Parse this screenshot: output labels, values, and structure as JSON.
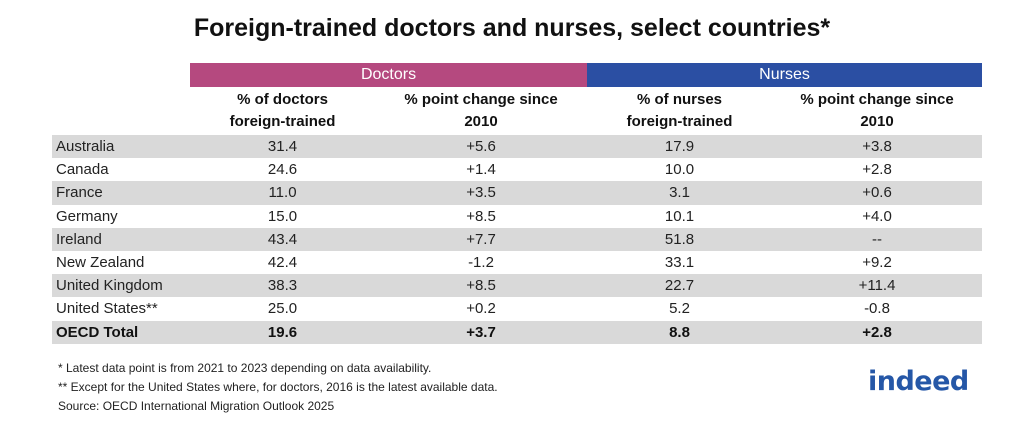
{
  "title": "Foreign-trained doctors and nurses, select countries*",
  "colors": {
    "doctors": "#b5497f",
    "nurses": "#2b4fa3",
    "shade": "#d9d9d9",
    "logo": "#2557a7"
  },
  "groups": {
    "doctors": "Doctors",
    "nurses": "Nurses"
  },
  "headers": {
    "col1": [
      "% of doctors",
      "foreign-trained"
    ],
    "col2": [
      "% point change since",
      "2010"
    ],
    "col3": [
      "% of nurses",
      "foreign-trained"
    ],
    "col4": [
      "% point change since",
      "2010"
    ]
  },
  "chart_data": {
    "type": "table",
    "title": "Foreign-trained doctors and nurses, select countries*",
    "columns": [
      "",
      "% of doctors foreign-trained",
      "% point change since 2010",
      "% of nurses foreign-trained",
      "% point change since 2010"
    ],
    "rows": [
      [
        "Australia",
        "31.4",
        "+5.6",
        "17.9",
        "+3.8"
      ],
      [
        "Canada",
        "24.6",
        "+1.4",
        "10.0",
        "+2.8"
      ],
      [
        "France",
        "11.0",
        "+3.5",
        "3.1",
        "+0.6"
      ],
      [
        "Germany",
        "15.0",
        "+8.5",
        "10.1",
        "+4.0"
      ],
      [
        "Ireland",
        "43.4",
        "+7.7",
        "51.8",
        "--"
      ],
      [
        "New Zealand",
        "42.4",
        "-1.2",
        "33.1",
        "+9.2"
      ],
      [
        "United Kingdom",
        "38.3",
        "+8.5",
        "22.7",
        "+11.4"
      ],
      [
        "United States**",
        "25.0",
        "+0.2",
        "5.2",
        "-0.8"
      ],
      [
        "OECD Total",
        "19.6",
        "+3.7",
        "8.8",
        "+2.8"
      ]
    ]
  },
  "notes": [
    "* Latest data point is from 2021 to 2023 depending on data availability.",
    "** Except for the United States where, for doctors, 2016 is the latest available data.",
    "Source: OECD International Migration Outlook 2025"
  ],
  "logo": "indeed"
}
